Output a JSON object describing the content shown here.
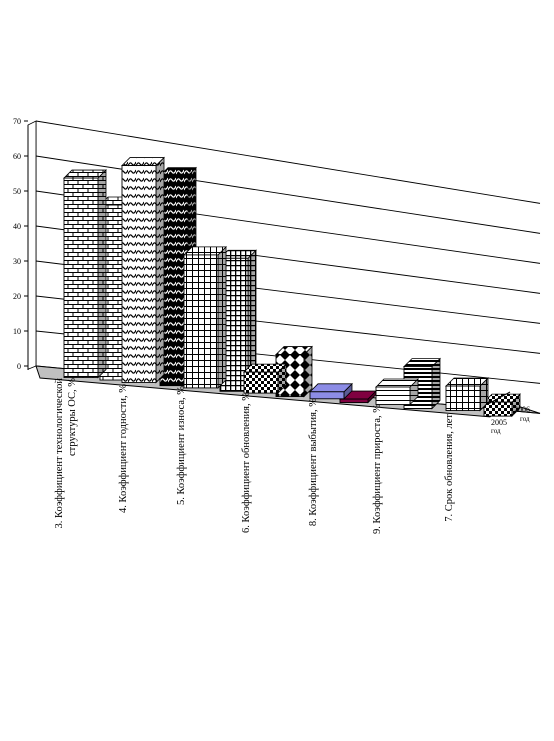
{
  "chart_data": {
    "type": "bar",
    "style": "3d-clustered-column",
    "title": "",
    "xlabel": "",
    "ylabel": "",
    "ylim": [
      0,
      70
    ],
    "yticks": [
      0,
      10,
      20,
      30,
      40,
      50,
      60,
      70
    ],
    "grid": true,
    "categories": [
      "3. Коэффициент технологической структуры ОС, %",
      "4. Коэффициент годности, %",
      "5. Коэффициент износа, %",
      "6. Коэффициент обновления, %",
      "8. Коэффициент выбытия, %",
      "9. Коэффициент прироста, %",
      "7. Срок обновления, лет"
    ],
    "series": [
      {
        "name": "2005 год",
        "values": [
          57,
          62,
          38,
          6,
          2,
          5,
          7
        ]
      },
      {
        "name": "2006 год",
        "values": [
          50,
          60,
          38,
          12,
          1,
          12,
          4
        ]
      }
    ]
  }
}
